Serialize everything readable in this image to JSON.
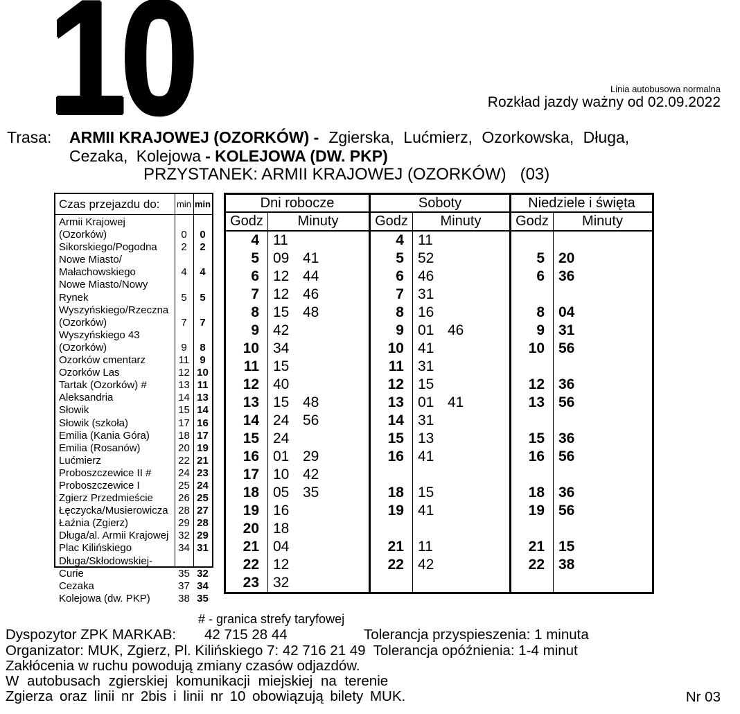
{
  "line_number": "10",
  "header": {
    "line_type": "Linia autobusowa normalna",
    "validity": "Rozkład jazdy ważny od 02.09.2022",
    "trasa_label": "Trasa:",
    "route_start_bold": "ARMII KRAJOWEJ (OZORKÓW) -",
    "route_via_line1": "Zgierska, Lućmierz, Ozorkowska, Długa,",
    "route_via_line2": "Cezaka, Kolejowa",
    "route_end_bold": "- KOLEJOWA (DW. PKP)",
    "przystanek": "PRZYSTANEK: ARMII KRAJOWEJ (OZORKÓW)   (03)"
  },
  "stops_table": {
    "header_label": "Czas przejazdu do:",
    "col1_label": "min",
    "col2_label": "min",
    "rows": [
      {
        "name": "Armii Krajowej (Ozorków)",
        "t1": "0",
        "t2": "0"
      },
      {
        "name": "Sikorskiego/Pogodna",
        "t1": "2",
        "t2": "2"
      },
      {
        "name": "Nowe Miasto/\nMałachowskiego",
        "t1": "4",
        "t2": "4"
      },
      {
        "name": "Nowe Miasto/Nowy Rynek",
        "t1": "5",
        "t2": "5"
      },
      {
        "name": "Wyszyńskiego/Rzeczna\n(Ozorków)",
        "t1": "7",
        "t2": "7"
      },
      {
        "name": "Wyszyńskiego 43\n(Ozorków)",
        "t1": "9",
        "t2": "8"
      },
      {
        "name": "Ozorków cmentarz",
        "t1": "11",
        "t2": "9"
      },
      {
        "name": "Ozorków Las",
        "t1": "12",
        "t2": "10"
      },
      {
        "name": "Tartak (Ozorków) #",
        "t1": "13",
        "t2": "11"
      },
      {
        "name": "Aleksandria",
        "t1": "14",
        "t2": "13"
      },
      {
        "name": "Słowik",
        "t1": "15",
        "t2": "14"
      },
      {
        "name": "Słowik (szkoła)",
        "t1": "17",
        "t2": "16"
      },
      {
        "name": "Emilia (Kania Góra)",
        "t1": "18",
        "t2": "17"
      },
      {
        "name": "Emilia (Rosanów)",
        "t1": "20",
        "t2": "19"
      },
      {
        "name": "Lućmierz",
        "t1": "22",
        "t2": "21"
      },
      {
        "name": "Proboszczewice II #",
        "t1": "24",
        "t2": "23"
      },
      {
        "name": "Proboszczewice I",
        "t1": "25",
        "t2": "24"
      },
      {
        "name": "Zgierz Przedmieście",
        "t1": "26",
        "t2": "25"
      },
      {
        "name": "Łęczycka/Musierowicza",
        "t1": "28",
        "t2": "27"
      },
      {
        "name": "Łaźnia (Zgierz)",
        "t1": "29",
        "t2": "28"
      },
      {
        "name": "Długa/al. Armii Krajowej",
        "t1": "32",
        "t2": "29"
      },
      {
        "name": "Plac Kilińskiego",
        "t1": "34",
        "t2": "31"
      },
      {
        "name": "Długa/Skłodowskiej-Curie",
        "t1": "35",
        "t2": "32"
      },
      {
        "name": "Cezaka",
        "t1": "37",
        "t2": "34"
      },
      {
        "name": "Kolejowa (dw. PKP)",
        "t1": "38",
        "t2": "35"
      }
    ]
  },
  "timetable": {
    "hour_label": "Godz",
    "minutes_label": "Minuty",
    "panels": [
      {
        "title": "Dni robocze",
        "bold_minutes": false,
        "rows": [
          {
            "h": "4",
            "m": [
              "11"
            ]
          },
          {
            "h": "5",
            "m": [
              "09",
              "41"
            ]
          },
          {
            "h": "6",
            "m": [
              "12",
              "44"
            ]
          },
          {
            "h": "7",
            "m": [
              "12",
              "46"
            ]
          },
          {
            "h": "8",
            "m": [
              "15",
              "48"
            ]
          },
          {
            "h": "9",
            "m": [
              "42"
            ]
          },
          {
            "h": "10",
            "m": [
              "34"
            ]
          },
          {
            "h": "11",
            "m": [
              "15"
            ]
          },
          {
            "h": "12",
            "m": [
              "40"
            ]
          },
          {
            "h": "13",
            "m": [
              "15",
              "48"
            ]
          },
          {
            "h": "14",
            "m": [
              "24",
              "56"
            ]
          },
          {
            "h": "15",
            "m": [
              "24"
            ]
          },
          {
            "h": "16",
            "m": [
              "01",
              "29"
            ]
          },
          {
            "h": "17",
            "m": [
              "10",
              "42"
            ]
          },
          {
            "h": "18",
            "m": [
              "05",
              "35"
            ]
          },
          {
            "h": "19",
            "m": [
              "16"
            ]
          },
          {
            "h": "20",
            "m": [
              "18"
            ]
          },
          {
            "h": "21",
            "m": [
              "04"
            ]
          },
          {
            "h": "22",
            "m": [
              "12"
            ]
          },
          {
            "h": "23",
            "m": [
              "32"
            ]
          }
        ]
      },
      {
        "title": "Soboty",
        "bold_minutes": false,
        "rows": [
          {
            "h": "4",
            "m": [
              "11"
            ]
          },
          {
            "h": "5",
            "m": [
              "52"
            ]
          },
          {
            "h": "6",
            "m": [
              "46"
            ]
          },
          {
            "h": "7",
            "m": [
              "31"
            ]
          },
          {
            "h": "8",
            "m": [
              "16"
            ]
          },
          {
            "h": "9",
            "m": [
              "01",
              "46"
            ]
          },
          {
            "h": "10",
            "m": [
              "41"
            ]
          },
          {
            "h": "11",
            "m": [
              "31"
            ]
          },
          {
            "h": "12",
            "m": [
              "15"
            ]
          },
          {
            "h": "13",
            "m": [
              "01",
              "41"
            ]
          },
          {
            "h": "14",
            "m": [
              "31"
            ]
          },
          {
            "h": "15",
            "m": [
              "13"
            ]
          },
          {
            "h": "16",
            "m": [
              "41"
            ]
          },
          null,
          {
            "h": "18",
            "m": [
              "15"
            ]
          },
          {
            "h": "19",
            "m": [
              "41"
            ]
          },
          null,
          {
            "h": "21",
            "m": [
              "11"
            ]
          },
          {
            "h": "22",
            "m": [
              "42"
            ]
          },
          null
        ]
      },
      {
        "title": "Niedziele i święta",
        "bold_minutes": true,
        "rows": [
          null,
          {
            "h": "5",
            "m": [
              "20"
            ]
          },
          {
            "h": "6",
            "m": [
              "36"
            ]
          },
          null,
          {
            "h": "8",
            "m": [
              "04"
            ]
          },
          {
            "h": "9",
            "m": [
              "31"
            ]
          },
          {
            "h": "10",
            "m": [
              "56"
            ]
          },
          null,
          {
            "h": "12",
            "m": [
              "36"
            ]
          },
          {
            "h": "13",
            "m": [
              "56"
            ]
          },
          null,
          {
            "h": "15",
            "m": [
              "36"
            ]
          },
          {
            "h": "16",
            "m": [
              "56"
            ]
          },
          null,
          {
            "h": "18",
            "m": [
              "36"
            ]
          },
          {
            "h": "19",
            "m": [
              "56"
            ]
          },
          null,
          {
            "h": "21",
            "m": [
              "15"
            ]
          },
          {
            "h": "22",
            "m": [
              "38"
            ]
          },
          null
        ]
      }
    ]
  },
  "footnote": "# - granica strefy taryfowej",
  "footer": {
    "dispatcher_label": "Dyspozytor ZPK MARKAB:",
    "dispatcher_phone": "42 715 28 44",
    "tolerance_early": "Tolerancja przyspieszenia: 1 minuta",
    "organizer": "Organizator: MUK, Zgierz, Pl. Kilińskiego 7: 42 716 21 49  Tolerancja opóźnienia: 1-4 minut",
    "disruption_note": "Zakłócenia w ruchu powodują zmiany czasów odjazdów.",
    "tickets_line1": "W autobusach zgierskiej komunikacji miejskiej na terenie",
    "tickets_line2": "Zgierza oraz linii nr 2bis i linii nr 10 obowiązują bilety MUK.",
    "page_number": "Nr 03"
  }
}
